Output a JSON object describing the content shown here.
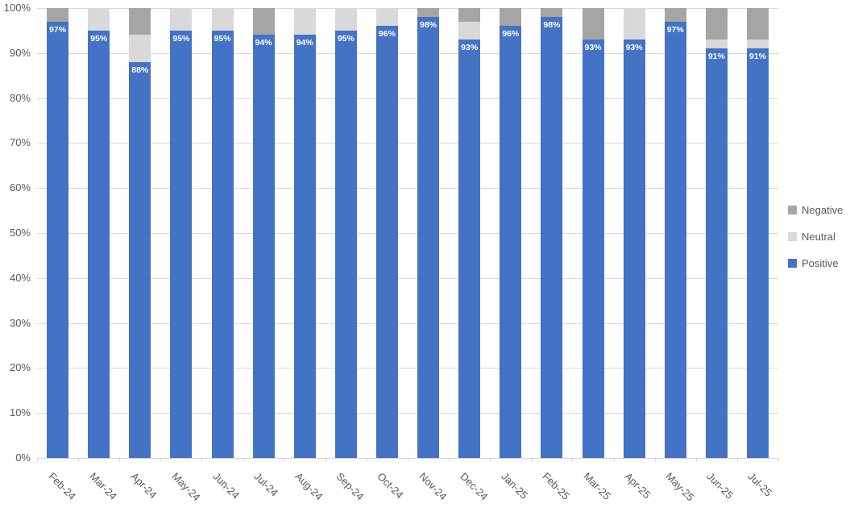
{
  "chart_data": {
    "type": "bar",
    "subtype": "stacked-100-percent",
    "title": "",
    "categories": [
      "Feb-24",
      "Mar-24",
      "Apr-24",
      "May-24",
      "Jun-24",
      "Jul-24",
      "Aug-24",
      "Sep-24",
      "Oct-24",
      "Nov-24",
      "Dec-24",
      "Jan-25",
      "Feb-25",
      "Mar-25",
      "Apr-25",
      "May-25",
      "Jun-25",
      "Jul-25"
    ],
    "series": [
      {
        "name": "Positive",
        "color": "#4472C4",
        "values": [
          97,
          95,
          88,
          95,
          95,
          94,
          94,
          95,
          96,
          98,
          93,
          96,
          98,
          93,
          93,
          97,
          91,
          91
        ]
      },
      {
        "name": "Neutral",
        "color": "#D9D9D9",
        "values": [
          0,
          5,
          6,
          5,
          5,
          0,
          6,
          5,
          4,
          0,
          4,
          0,
          0,
          0,
          7,
          0,
          2,
          2
        ]
      },
      {
        "name": "Negative",
        "color": "#A5A5A5",
        "values": [
          3,
          0,
          6,
          0,
          0,
          6,
          0,
          0,
          0,
          2,
          3,
          4,
          2,
          7,
          0,
          3,
          7,
          7
        ]
      }
    ],
    "stack_order": "bottom-to-top",
    "data_labels": {
      "series": "Positive",
      "text_color": "#FFFFFF",
      "values": [
        "97%",
        "95%",
        "88%",
        "95%",
        "95%",
        "94%",
        "94%",
        "95%",
        "96%",
        "98%",
        "93%",
        "96%",
        "98%",
        "93%",
        "93%",
        "97%",
        "91%",
        "91%"
      ]
    },
    "y_axis": {
      "min": 0,
      "max": 100,
      "step": 10,
      "format": "percent",
      "tick_labels": [
        "0%",
        "10%",
        "20%",
        "30%",
        "40%",
        "50%",
        "60%",
        "70%",
        "80%",
        "90%",
        "100%"
      ]
    },
    "x_axis": {
      "label_rotation_deg": 45
    },
    "legend": {
      "position": "right",
      "items": [
        {
          "label": "Negative",
          "color": "#A5A5A5"
        },
        {
          "label": "Neutral",
          "color": "#D9D9D9"
        },
        {
          "label": "Positive",
          "color": "#4472C4"
        }
      ]
    },
    "grid": true,
    "colors": {
      "gridline": "#D9D9D9",
      "axis_line": "#D9D9D9",
      "axis_text": "#595959",
      "background": "#FFFFFF"
    }
  }
}
